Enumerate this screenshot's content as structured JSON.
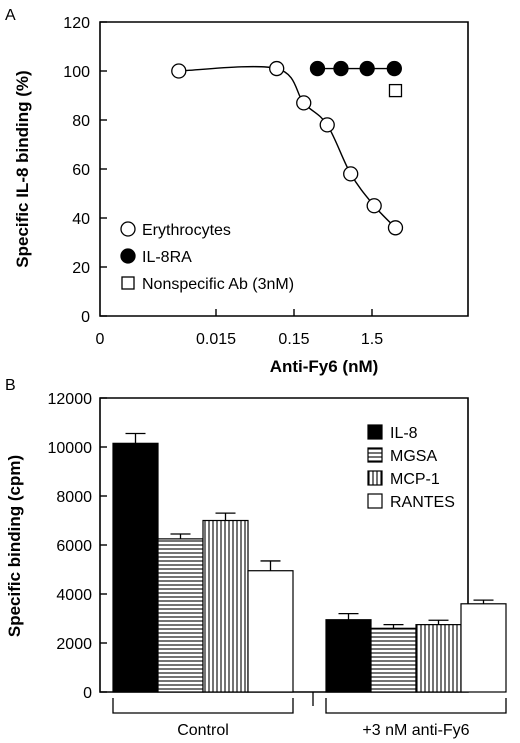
{
  "chart_data": [
    {
      "type": "scatter",
      "panel_label": "A",
      "xlabel": "Anti-Fy6 (nM)",
      "ylabel": "Specific IL-8 binding (%)",
      "x_scale": "log",
      "x_ticks": [
        "0",
        "0.015",
        "0.15",
        "1.5"
      ],
      "ylim": [
        0,
        120
      ],
      "y_ticks": [
        "0",
        "20",
        "40",
        "60",
        "80",
        "100",
        "120"
      ],
      "legend_position": "bottom-left",
      "series": [
        {
          "name": "Erythrocytes",
          "marker": "open-circle",
          "fit_curve": true,
          "points": [
            {
              "x": 0.005,
              "y": 100
            },
            {
              "x": 0.09,
              "y": 101
            },
            {
              "x": 0.2,
              "y": 87
            },
            {
              "x": 0.4,
              "y": 78
            },
            {
              "x": 0.8,
              "y": 58
            },
            {
              "x": 1.6,
              "y": 45
            },
            {
              "x": 3,
              "y": 36
            }
          ]
        },
        {
          "name": "IL-8RA",
          "marker": "filled-circle",
          "connected": true,
          "points": [
            {
              "x": 0.3,
              "y": 101
            },
            {
              "x": 0.6,
              "y": 101
            },
            {
              "x": 1.3,
              "y": 101
            },
            {
              "x": 2.9,
              "y": 101
            }
          ]
        },
        {
          "name": "Nonspecific Ab (3nM)",
          "marker": "open-square",
          "points": [
            {
              "x": 3,
              "y": 92
            }
          ]
        }
      ]
    },
    {
      "type": "bar",
      "panel_label": "B",
      "ylabel": "Specific binding (cpm)",
      "ylim": [
        0,
        12000
      ],
      "y_ticks": [
        "0",
        "2000",
        "4000",
        "6000",
        "8000",
        "10000",
        "12000"
      ],
      "groups": [
        "Control",
        "+3 nM anti-Fy6"
      ],
      "legend_position": "top-right",
      "series": [
        {
          "name": "IL-8",
          "fill": "solid-black",
          "values": [
            10150,
            2950
          ],
          "errors": [
            400,
            250
          ]
        },
        {
          "name": "MGSA",
          "fill": "horizontal-lines",
          "values": [
            6250,
            2600
          ],
          "errors": [
            200,
            150
          ]
        },
        {
          "name": "MCP-1",
          "fill": "vertical-lines",
          "values": [
            7000,
            2750
          ],
          "errors": [
            300,
            180
          ]
        },
        {
          "name": "RANTES",
          "fill": "white",
          "values": [
            4950,
            3600
          ],
          "errors": [
            400,
            150
          ]
        }
      ]
    }
  ]
}
